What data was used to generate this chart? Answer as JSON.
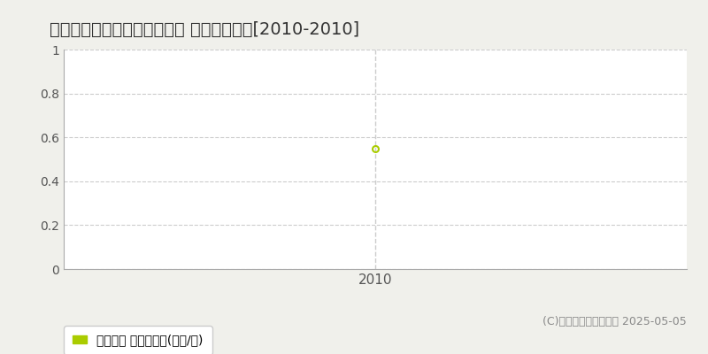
{
  "title": "深川市納内町グリーンタウン 土地価格推移[2010-2010]",
  "years": [
    2010
  ],
  "values": [
    0.55
  ],
  "ylim": [
    0,
    1.0
  ],
  "yticks": [
    0,
    0.2,
    0.4,
    0.6,
    0.8,
    1
  ],
  "xlim": [
    2009.3,
    2010.7
  ],
  "xtick_label": "2010",
  "line_color": "#aacc00",
  "marker_color": "#aacc00",
  "grid_color": "#cccccc",
  "bg_color": "#f0f0eb",
  "plot_bg_color": "#ffffff",
  "legend_label": "土地価格 平均坪単価(万円/坪)",
  "copyright_text": "(C)土地価格ドットコム 2025-05-05",
  "title_fontsize": 14,
  "axis_fontsize": 10,
  "legend_fontsize": 10,
  "copyright_fontsize": 9
}
